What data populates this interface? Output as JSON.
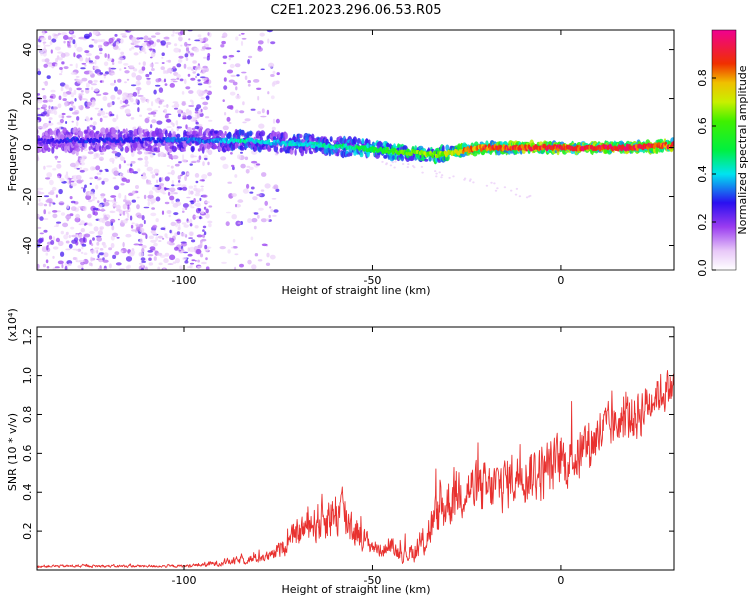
{
  "title": "C2E1.2023.296.06.53.R05",
  "chart_data": [
    {
      "type": "heatmap",
      "xlabel": "Height of straight line (km)",
      "ylabel": "Frequency (Hz)",
      "xlim": [
        -139,
        30
      ],
      "ylim": [
        -50,
        48
      ],
      "xticks": [
        -100,
        -50,
        0
      ],
      "yticks": [
        -40,
        -20,
        0,
        20,
        40
      ],
      "colorbar": {
        "label": "Normalized spectral amplitude",
        "range": [
          0,
          1
        ],
        "ticks": [
          "0.0",
          "0.2",
          "0.4",
          "0.6",
          "0.8"
        ],
        "tick_values": [
          0,
          0.2,
          0.4,
          0.6,
          0.8
        ]
      },
      "ridge": {
        "x": [
          -139,
          -130,
          -120,
          -110,
          -100,
          -93,
          -85,
          -75,
          -65,
          -55,
          -48,
          -40,
          -33,
          -28,
          -25,
          -20,
          -10,
          0,
          10,
          20,
          30
        ],
        "freq": [
          2.5,
          3,
          3,
          3,
          3,
          2.5,
          3,
          2,
          1,
          0,
          -1,
          -2,
          -3,
          -2,
          -1,
          0,
          0,
          0,
          0,
          0,
          1
        ],
        "amplitude": [
          0.25,
          0.3,
          0.3,
          0.3,
          0.35,
          0.35,
          0.45,
          0.4,
          0.45,
          0.5,
          0.6,
          0.65,
          0.7,
          0.75,
          0.85,
          0.9,
          0.92,
          0.94,
          0.95,
          0.95,
          0.9
        ]
      },
      "scatter_bands": [
        {
          "x_range": [
            -139,
            -93
          ],
          "density": 0.95
        },
        {
          "x_range": [
            -90,
            -75
          ],
          "density": 0.35
        }
      ]
    },
    {
      "type": "line",
      "xlabel": "Height of straight line (km)",
      "ylabel": "SNR (10 * v/v)",
      "multiplier": "(x10⁴)",
      "xlim": [
        -139,
        30
      ],
      "ylim": [
        0,
        1.25
      ],
      "xticks": [
        -100,
        -50,
        0
      ],
      "yticks": [
        "0.2",
        "0.4",
        "0.6",
        "0.8",
        "1.0",
        "1.2"
      ],
      "ytick_values": [
        0.2,
        0.4,
        0.6,
        0.8,
        1.0,
        1.2
      ],
      "series_color": "#e8312f",
      "envelope": {
        "x": [
          -139,
          -120,
          -100,
          -93,
          -85,
          -77,
          -72,
          -68,
          -62,
          -58,
          -55,
          -52,
          -48,
          -45,
          -42,
          -38,
          -35,
          -32,
          -28,
          -25,
          -20,
          -15,
          -10,
          -5,
          0,
          5,
          10,
          15,
          20,
          25,
          30
        ],
        "mean": [
          0.02,
          0.02,
          0.02,
          0.03,
          0.05,
          0.07,
          0.15,
          0.22,
          0.28,
          0.3,
          0.22,
          0.15,
          0.1,
          0.12,
          0.08,
          0.1,
          0.2,
          0.3,
          0.4,
          0.42,
          0.4,
          0.45,
          0.5,
          0.5,
          0.55,
          0.6,
          0.7,
          0.75,
          0.8,
          0.9,
          0.95
        ],
        "spread": [
          0.01,
          0.01,
          0.01,
          0.02,
          0.03,
          0.04,
          0.08,
          0.12,
          0.18,
          0.2,
          0.15,
          0.08,
          0.05,
          0.06,
          0.06,
          0.08,
          0.15,
          0.2,
          0.2,
          0.2,
          0.2,
          0.2,
          0.2,
          0.22,
          0.2,
          0.2,
          0.2,
          0.15,
          0.2,
          0.15,
          0.15
        ]
      }
    }
  ]
}
